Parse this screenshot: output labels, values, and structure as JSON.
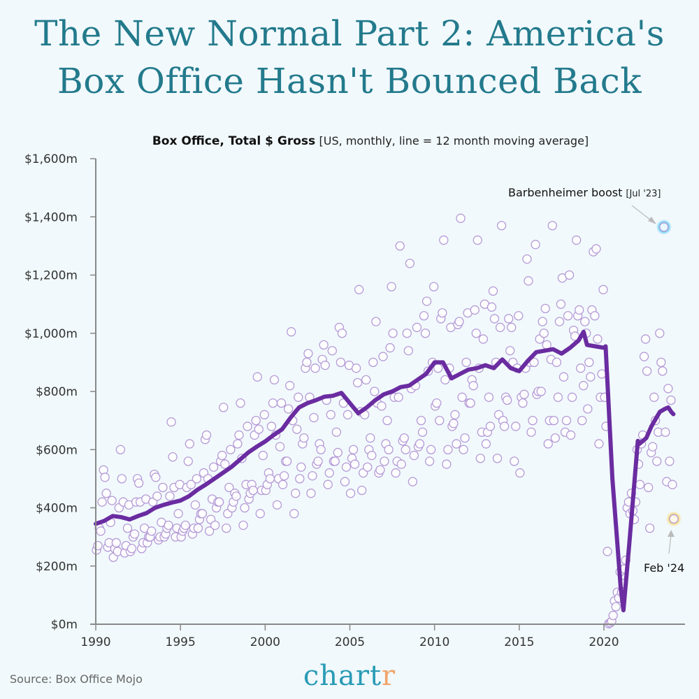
{
  "title": {
    "line1": "The New Normal Part 2: America's",
    "line2": "Box Office Hasn't Bounced Back"
  },
  "footer": {
    "source": "Source: Box Office Mojo",
    "logo_main": "chart",
    "logo_accent": "r"
  },
  "colors": {
    "background": "#f1f9fc",
    "title": "#237a8c",
    "line": "#6a2ca0",
    "points": "#b49ad6",
    "highlight_blue": "#5cc8f2",
    "highlight_yellow": "#f7d46a",
    "axis": "#888888",
    "logo": "#2a9bb5",
    "logo_accent": "#f2a46b"
  },
  "chart_data": {
    "type": "scatter",
    "title": "Box Office, Total $ Gross",
    "subtitle": "[US, monthly,  line = 12 month moving average]",
    "xlabel": "",
    "ylabel": "",
    "xlim": [
      1990,
      2024.8
    ],
    "ylim": [
      0,
      1600
    ],
    "x_ticks": [
      "1990",
      "1995",
      "2000",
      "2005",
      "2010",
      "2015",
      "2020"
    ],
    "y_ticks": [
      "$0m",
      "$200m",
      "$400m",
      "$600m",
      "$800m",
      "$1,000m",
      "$1,200m",
      "$1,400m",
      "$1,600m"
    ],
    "grid": false,
    "monthly_gross_start": "1990-01",
    "monthly_gross": [
      [
        255,
        270,
        330,
        320,
        420,
        530,
        505,
        450,
        265,
        280,
        350,
        425
      ],
      [
        230,
        260,
        280,
        250,
        400,
        600,
        500,
        420,
        245,
        270,
        330,
        410
      ],
      [
        250,
        260,
        300,
        310,
        420,
        500,
        485,
        420,
        260,
        280,
        330,
        430
      ],
      [
        280,
        300,
        300,
        320,
        420,
        515,
        505,
        440,
        290,
        300,
        350,
        470
      ],
      [
        300,
        310,
        330,
        340,
        440,
        695,
        575,
        470,
        300,
        330,
        380,
        480
      ],
      [
        300,
        320,
        330,
        340,
        470,
        560,
        620,
        480,
        310,
        330,
        410,
        500
      ],
      [
        330,
        360,
        380,
        380,
        520,
        635,
        650,
        500,
        320,
        360,
        430,
        540
      ],
      [
        340,
        400,
        420,
        420,
        560,
        580,
        745,
        550,
        330,
        380,
        470,
        600
      ],
      [
        400,
        420,
        450,
        440,
        620,
        650,
        760,
        570,
        340,
        400,
        480,
        680
      ],
      [
        430,
        450,
        480,
        460,
        650,
        700,
        850,
        670,
        380,
        460,
        580,
        720
      ],
      [
        460,
        480,
        520,
        500,
        680,
        760,
        840,
        650,
        410,
        500,
        610,
        760
      ],
      [
        480,
        510,
        560,
        560,
        740,
        820,
        1005,
        700,
        380,
        450,
        670,
        780
      ],
      [
        500,
        540,
        620,
        640,
        880,
        900,
        930,
        780,
        450,
        510,
        710,
        880
      ],
      [
        550,
        560,
        620,
        600,
        910,
        960,
        890,
        770,
        480,
        520,
        720,
        940
      ],
      [
        560,
        560,
        660,
        590,
        1020,
        900,
        1000,
        760,
        490,
        540,
        720,
        890
      ],
      [
        450,
        570,
        600,
        550,
        880,
        830,
        1150,
        730,
        460,
        520,
        720,
        840
      ],
      [
        540,
        600,
        640,
        580,
        900,
        800,
        1040,
        760,
        520,
        530,
        750,
        920
      ],
      [
        560,
        620,
        700,
        600,
        950,
        1160,
        1000,
        780,
        520,
        560,
        780,
        1300
      ],
      [
        550,
        630,
        640,
        600,
        1000,
        940,
        1240,
        810,
        490,
        580,
        820,
        1020
      ],
      [
        610,
        620,
        700,
        660,
        1060,
        1000,
        1110,
        870,
        560,
        600,
        900,
        1160
      ],
      [
        750,
        760,
        880,
        700,
        1050,
        1070,
        1320,
        840,
        550,
        600,
        880,
        1020
      ],
      [
        680,
        690,
        720,
        620,
        1030,
        1040,
        1395,
        780,
        600,
        640,
        900,
        1070
      ],
      [
        760,
        760,
        840,
        820,
        1080,
        1000,
        1320,
        880,
        570,
        660,
        980,
        1100
      ],
      [
        620,
        660,
        780,
        680,
        1090,
        1145,
        1050,
        900,
        570,
        720,
        1020,
        1370
      ],
      [
        700,
        680,
        780,
        770,
        1050,
        940,
        1020,
        900,
        560,
        680,
        880,
        1060
      ],
      [
        520,
        780,
        760,
        790,
        880,
        1255,
        1180,
        900,
        660,
        700,
        900,
        1305
      ],
      [
        790,
        800,
        980,
        800,
        1040,
        1000,
        1085,
        960,
        620,
        700,
        910,
        1370
      ],
      [
        700,
        640,
        900,
        780,
        1040,
        1100,
        1190,
        850,
        660,
        700,
        1060,
        1200
      ],
      [
        650,
        780,
        1010,
        990,
        1320,
        1060,
        1080,
        880,
        700,
        820,
        1040,
        1000
      ],
      [
        740,
        900,
        850,
        1080,
        1280,
        1060,
        1290,
        980,
        620,
        780,
        860,
        1150
      ],
      [
        780,
        680,
        250,
        2,
        5,
        10,
        30,
        80,
        60,
        110,
        90,
        180
      ],
      [
        110,
        140,
        190,
        220,
        400,
        420,
        380,
        450,
        390,
        360,
        420,
        600
      ],
      [
        550,
        480,
        620,
        650,
        920,
        980,
        870,
        470,
        330,
        590,
        610,
        780
      ],
      [
        700,
        560,
        660,
        1000,
        900,
        870,
        1365,
        660,
        490,
        810,
        560,
        770
      ],
      [
        480,
        362
      ]
    ],
    "moving_average": {
      "x": [
        1990.0,
        1990.5,
        1991.0,
        1991.5,
        1992.0,
        1992.5,
        1993.0,
        1993.5,
        1994.0,
        1994.5,
        1995.0,
        1995.5,
        1996.0,
        1996.5,
        1997.0,
        1997.5,
        1998.0,
        1998.5,
        1999.0,
        1999.5,
        2000.0,
        2000.5,
        2001.0,
        2001.5,
        2002.0,
        2002.5,
        2003.0,
        2003.5,
        2004.0,
        2004.5,
        2005.0,
        2005.5,
        2006.0,
        2006.5,
        2007.0,
        2007.5,
        2008.0,
        2008.5,
        2009.0,
        2009.5,
        2010.0,
        2010.5,
        2011.0,
        2011.5,
        2012.0,
        2012.5,
        2013.0,
        2013.5,
        2014.0,
        2014.5,
        2015.0,
        2015.5,
        2016.0,
        2016.5,
        2017.0,
        2017.5,
        2018.0,
        2018.5,
        2018.8,
        2019.0,
        2019.5,
        2020.0,
        2020.1,
        2020.5,
        2021.0,
        2021.15,
        2021.5,
        2022.0,
        2022.1,
        2022.5,
        2022.8,
        2023.0,
        2023.3,
        2023.6,
        2023.8,
        2024.0,
        2024.1
      ],
      "values": [
        345,
        355,
        372,
        368,
        360,
        372,
        382,
        400,
        410,
        418,
        425,
        440,
        462,
        480,
        500,
        520,
        540,
        565,
        590,
        610,
        628,
        650,
        670,
        710,
        745,
        760,
        770,
        782,
        785,
        795,
        760,
        725,
        745,
        770,
        790,
        800,
        815,
        820,
        840,
        860,
        900,
        900,
        845,
        860,
        875,
        880,
        890,
        880,
        910,
        880,
        870,
        905,
        935,
        940,
        945,
        930,
        950,
        975,
        1005,
        960,
        955,
        950,
        955,
        500,
        120,
        48,
        280,
        630,
        620,
        640,
        680,
        700,
        730,
        740,
        745,
        728,
        722
      ]
    },
    "annotations": [
      {
        "text": "Barbenheimer boost",
        "bracket": "[Jul '23]",
        "x": 2023.5,
        "y": 1365
      },
      {
        "text": "Feb '24",
        "x": 2024.1,
        "y": 362
      }
    ]
  }
}
